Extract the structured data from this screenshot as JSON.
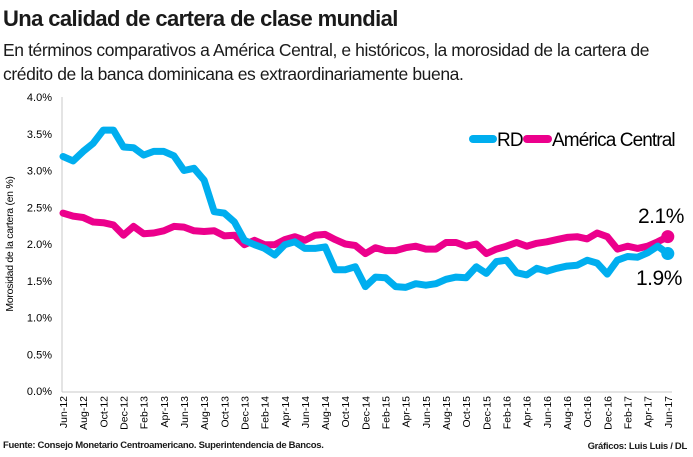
{
  "title": "Una calidad de cartera de clase mundial",
  "subtitle": "En términos comparativos a América Central, e históricos, la morosidad de la cartera de crédito de la banca dominicana es extraordinariamente buena.",
  "footer": {
    "source": "Fuente: Consejo Monetario Centroamericano. Superintendencia de Bancos.",
    "credit": "Gráficos: Luis Luis / DL"
  },
  "chart_data": {
    "type": "line",
    "ylabel": "Morosidad de la cartera (en %)",
    "xlabel": "",
    "ylim": [
      0,
      4.0
    ],
    "yticks": [
      "0.0%",
      "0.5%",
      "1.0%",
      "1.5%",
      "2.0%",
      "2.5%",
      "3.0%",
      "3.5%",
      "4.0%"
    ],
    "grid": false,
    "legend_placement": "top-right",
    "x_tick_labels": [
      "Jun-12",
      "Aug-12",
      "Oct-12",
      "Dec-12",
      "Feb-13",
      "Apr-13",
      "Jun-13",
      "Aug-13",
      "Oct-13",
      "Dec-13",
      "Feb-14",
      "Apr-14",
      "Jun-14",
      "Aug-14",
      "Oct-14",
      "Dec-14",
      "Feb-15",
      "Apr-15",
      "Jun-15",
      "Aug-15",
      "Oct-15",
      "Dec-15",
      "Feb-16",
      "Apr-16",
      "Jun-16",
      "Aug-16",
      "Oct-16",
      "Dec-16",
      "Feb-17",
      "Apr-17",
      "Jun-17"
    ],
    "x_range": [
      "Jun-12",
      "Jun-17"
    ],
    "frequency": "monthly",
    "series": [
      {
        "name": "RD",
        "color": "#00aeef",
        "values": [
          3.19,
          3.13,
          3.26,
          3.37,
          3.55,
          3.55,
          3.32,
          3.31,
          3.21,
          3.26,
          3.26,
          3.2,
          3.0,
          3.03,
          2.87,
          2.44,
          2.42,
          2.3,
          2.05,
          1.99,
          1.94,
          1.85,
          1.99,
          2.03,
          1.94,
          1.94,
          1.96,
          1.65,
          1.65,
          1.69,
          1.42,
          1.55,
          1.54,
          1.42,
          1.41,
          1.46,
          1.44,
          1.46,
          1.52,
          1.55,
          1.54,
          1.69,
          1.6,
          1.76,
          1.78,
          1.61,
          1.58,
          1.67,
          1.63,
          1.67,
          1.7,
          1.71,
          1.78,
          1.74,
          1.59,
          1.78,
          1.83,
          1.82,
          1.88,
          1.97,
          1.87
        ],
        "end_label": "1.9%"
      },
      {
        "name": "América Central",
        "color": "#ec008c",
        "values": [
          2.42,
          2.38,
          2.36,
          2.3,
          2.29,
          2.26,
          2.12,
          2.24,
          2.14,
          2.15,
          2.18,
          2.24,
          2.23,
          2.18,
          2.17,
          2.18,
          2.11,
          2.12,
          1.99,
          2.05,
          1.99,
          1.99,
          2.06,
          2.1,
          2.05,
          2.12,
          2.13,
          2.06,
          2.0,
          1.98,
          1.87,
          1.95,
          1.91,
          1.91,
          1.95,
          1.97,
          1.93,
          1.93,
          2.02,
          2.02,
          1.97,
          2.0,
          1.87,
          1.93,
          1.97,
          2.02,
          1.97,
          2.01,
          2.03,
          2.06,
          2.09,
          2.1,
          2.07,
          2.15,
          2.1,
          1.93,
          1.97,
          1.94,
          1.97,
          2.03,
          2.1
        ],
        "end_label": "2.1%"
      }
    ]
  }
}
